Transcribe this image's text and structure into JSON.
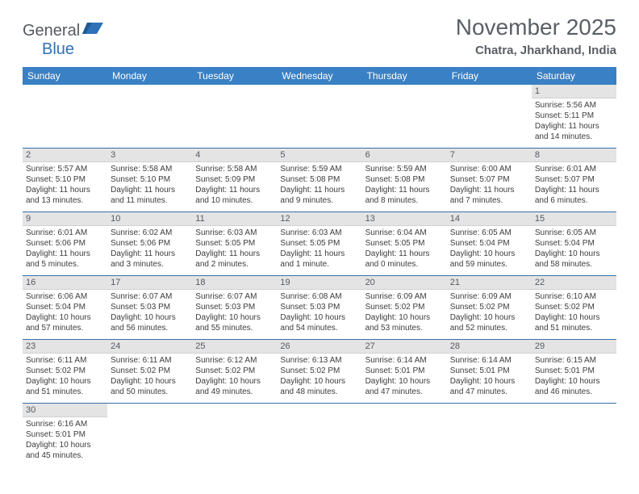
{
  "logo": {
    "text1": "General",
    "text2": "Blue"
  },
  "title": "November 2025",
  "location": "Chatra, Jharkhand, India",
  "weekdays": [
    "Sunday",
    "Monday",
    "Tuesday",
    "Wednesday",
    "Thursday",
    "Friday",
    "Saturday"
  ],
  "colors": {
    "header_bar": "#3a80c4",
    "row_divider": "#3a6fa8",
    "daynum_bg": "#e4e4e4",
    "logo_gray": "#555a61",
    "logo_blue": "#2f72b8",
    "title_gray": "#5a5f66"
  },
  "weeks": [
    [
      {
        "n": "",
        "lines": []
      },
      {
        "n": "",
        "lines": []
      },
      {
        "n": "",
        "lines": []
      },
      {
        "n": "",
        "lines": []
      },
      {
        "n": "",
        "lines": []
      },
      {
        "n": "",
        "lines": []
      },
      {
        "n": "1",
        "lines": [
          "Sunrise: 5:56 AM",
          "Sunset: 5:11 PM",
          "Daylight: 11 hours",
          "and 14 minutes."
        ]
      }
    ],
    [
      {
        "n": "2",
        "lines": [
          "Sunrise: 5:57 AM",
          "Sunset: 5:10 PM",
          "Daylight: 11 hours",
          "and 13 minutes."
        ]
      },
      {
        "n": "3",
        "lines": [
          "Sunrise: 5:58 AM",
          "Sunset: 5:10 PM",
          "Daylight: 11 hours",
          "and 11 minutes."
        ]
      },
      {
        "n": "4",
        "lines": [
          "Sunrise: 5:58 AM",
          "Sunset: 5:09 PM",
          "Daylight: 11 hours",
          "and 10 minutes."
        ]
      },
      {
        "n": "5",
        "lines": [
          "Sunrise: 5:59 AM",
          "Sunset: 5:08 PM",
          "Daylight: 11 hours",
          "and 9 minutes."
        ]
      },
      {
        "n": "6",
        "lines": [
          "Sunrise: 5:59 AM",
          "Sunset: 5:08 PM",
          "Daylight: 11 hours",
          "and 8 minutes."
        ]
      },
      {
        "n": "7",
        "lines": [
          "Sunrise: 6:00 AM",
          "Sunset: 5:07 PM",
          "Daylight: 11 hours",
          "and 7 minutes."
        ]
      },
      {
        "n": "8",
        "lines": [
          "Sunrise: 6:01 AM",
          "Sunset: 5:07 PM",
          "Daylight: 11 hours",
          "and 6 minutes."
        ]
      }
    ],
    [
      {
        "n": "9",
        "lines": [
          "Sunrise: 6:01 AM",
          "Sunset: 5:06 PM",
          "Daylight: 11 hours",
          "and 5 minutes."
        ]
      },
      {
        "n": "10",
        "lines": [
          "Sunrise: 6:02 AM",
          "Sunset: 5:06 PM",
          "Daylight: 11 hours",
          "and 3 minutes."
        ]
      },
      {
        "n": "11",
        "lines": [
          "Sunrise: 6:03 AM",
          "Sunset: 5:05 PM",
          "Daylight: 11 hours",
          "and 2 minutes."
        ]
      },
      {
        "n": "12",
        "lines": [
          "Sunrise: 6:03 AM",
          "Sunset: 5:05 PM",
          "Daylight: 11 hours",
          "and 1 minute."
        ]
      },
      {
        "n": "13",
        "lines": [
          "Sunrise: 6:04 AM",
          "Sunset: 5:05 PM",
          "Daylight: 11 hours",
          "and 0 minutes."
        ]
      },
      {
        "n": "14",
        "lines": [
          "Sunrise: 6:05 AM",
          "Sunset: 5:04 PM",
          "Daylight: 10 hours",
          "and 59 minutes."
        ]
      },
      {
        "n": "15",
        "lines": [
          "Sunrise: 6:05 AM",
          "Sunset: 5:04 PM",
          "Daylight: 10 hours",
          "and 58 minutes."
        ]
      }
    ],
    [
      {
        "n": "16",
        "lines": [
          "Sunrise: 6:06 AM",
          "Sunset: 5:04 PM",
          "Daylight: 10 hours",
          "and 57 minutes."
        ]
      },
      {
        "n": "17",
        "lines": [
          "Sunrise: 6:07 AM",
          "Sunset: 5:03 PM",
          "Daylight: 10 hours",
          "and 56 minutes."
        ]
      },
      {
        "n": "18",
        "lines": [
          "Sunrise: 6:07 AM",
          "Sunset: 5:03 PM",
          "Daylight: 10 hours",
          "and 55 minutes."
        ]
      },
      {
        "n": "19",
        "lines": [
          "Sunrise: 6:08 AM",
          "Sunset: 5:03 PM",
          "Daylight: 10 hours",
          "and 54 minutes."
        ]
      },
      {
        "n": "20",
        "lines": [
          "Sunrise: 6:09 AM",
          "Sunset: 5:02 PM",
          "Daylight: 10 hours",
          "and 53 minutes."
        ]
      },
      {
        "n": "21",
        "lines": [
          "Sunrise: 6:09 AM",
          "Sunset: 5:02 PM",
          "Daylight: 10 hours",
          "and 52 minutes."
        ]
      },
      {
        "n": "22",
        "lines": [
          "Sunrise: 6:10 AM",
          "Sunset: 5:02 PM",
          "Daylight: 10 hours",
          "and 51 minutes."
        ]
      }
    ],
    [
      {
        "n": "23",
        "lines": [
          "Sunrise: 6:11 AM",
          "Sunset: 5:02 PM",
          "Daylight: 10 hours",
          "and 51 minutes."
        ]
      },
      {
        "n": "24",
        "lines": [
          "Sunrise: 6:11 AM",
          "Sunset: 5:02 PM",
          "Daylight: 10 hours",
          "and 50 minutes."
        ]
      },
      {
        "n": "25",
        "lines": [
          "Sunrise: 6:12 AM",
          "Sunset: 5:02 PM",
          "Daylight: 10 hours",
          "and 49 minutes."
        ]
      },
      {
        "n": "26",
        "lines": [
          "Sunrise: 6:13 AM",
          "Sunset: 5:02 PM",
          "Daylight: 10 hours",
          "and 48 minutes."
        ]
      },
      {
        "n": "27",
        "lines": [
          "Sunrise: 6:14 AM",
          "Sunset: 5:01 PM",
          "Daylight: 10 hours",
          "and 47 minutes."
        ]
      },
      {
        "n": "28",
        "lines": [
          "Sunrise: 6:14 AM",
          "Sunset: 5:01 PM",
          "Daylight: 10 hours",
          "and 47 minutes."
        ]
      },
      {
        "n": "29",
        "lines": [
          "Sunrise: 6:15 AM",
          "Sunset: 5:01 PM",
          "Daylight: 10 hours",
          "and 46 minutes."
        ]
      }
    ],
    [
      {
        "n": "30",
        "lines": [
          "Sunrise: 6:16 AM",
          "Sunset: 5:01 PM",
          "Daylight: 10 hours",
          "and 45 minutes."
        ]
      },
      {
        "n": "",
        "lines": []
      },
      {
        "n": "",
        "lines": []
      },
      {
        "n": "",
        "lines": []
      },
      {
        "n": "",
        "lines": []
      },
      {
        "n": "",
        "lines": []
      },
      {
        "n": "",
        "lines": []
      }
    ]
  ]
}
